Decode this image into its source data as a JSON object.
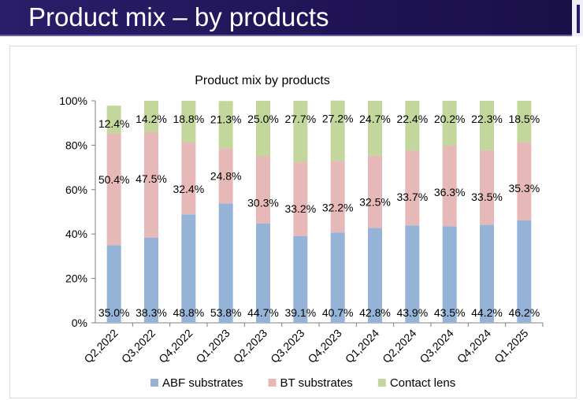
{
  "slide": {
    "title": "Product mix – by products",
    "accent_color": "#2a1e6a"
  },
  "chart_data": {
    "type": "bar",
    "stacked": true,
    "title": "Product mix by products",
    "categories": [
      "Q2,2022",
      "Q3,2022",
      "Q4,2022",
      "Q1,2023",
      "Q2,2023",
      "Q3,2023",
      "Q4,2023",
      "Q1,2024",
      "Q2,2024",
      "Q3,2024",
      "Q4,2024",
      "Q1,2025"
    ],
    "series": [
      {
        "name": "ABF substrates",
        "color": "#95b3d7",
        "values": [
          35.0,
          38.3,
          48.8,
          53.8,
          44.7,
          39.1,
          40.7,
          42.8,
          43.9,
          43.5,
          44.2,
          46.2
        ],
        "labels": [
          "35.0%",
          "38.3%",
          "48.8%",
          "53.8%",
          "44.7%",
          "39.1%",
          "40.7%",
          "42.8%",
          "43.9%",
          "43.5%",
          "44.2%",
          "46.2%"
        ]
      },
      {
        "name": "BT substrates",
        "color": "#e6b9b8",
        "values": [
          50.4,
          47.5,
          32.4,
          24.8,
          30.3,
          33.2,
          32.2,
          32.5,
          33.7,
          36.3,
          33.5,
          35.3
        ],
        "labels": [
          "50.4%",
          "47.5%",
          "32.4%",
          "24.8%",
          "30.3%",
          "33.2%",
          "32.2%",
          "32.5%",
          "33.7%",
          "36.3%",
          "33.5%",
          "35.3%"
        ]
      },
      {
        "name": "Contact lens",
        "color": "#c3d69b",
        "values": [
          12.4,
          14.2,
          18.8,
          21.3,
          25.0,
          27.7,
          27.2,
          24.7,
          22.4,
          20.2,
          22.3,
          18.5
        ],
        "labels": [
          "12.4%",
          "14.2%",
          "18.8%",
          "21.3%",
          "25.0%",
          "27.7%",
          "27.2%",
          "24.7%",
          "22.4%",
          "20.2%",
          "22.3%",
          "18.5%"
        ]
      }
    ],
    "y_ticks": [
      "0%",
      "20%",
      "40%",
      "60%",
      "80%",
      "100%"
    ],
    "ylim": [
      0,
      100
    ],
    "legend": "bottom"
  }
}
